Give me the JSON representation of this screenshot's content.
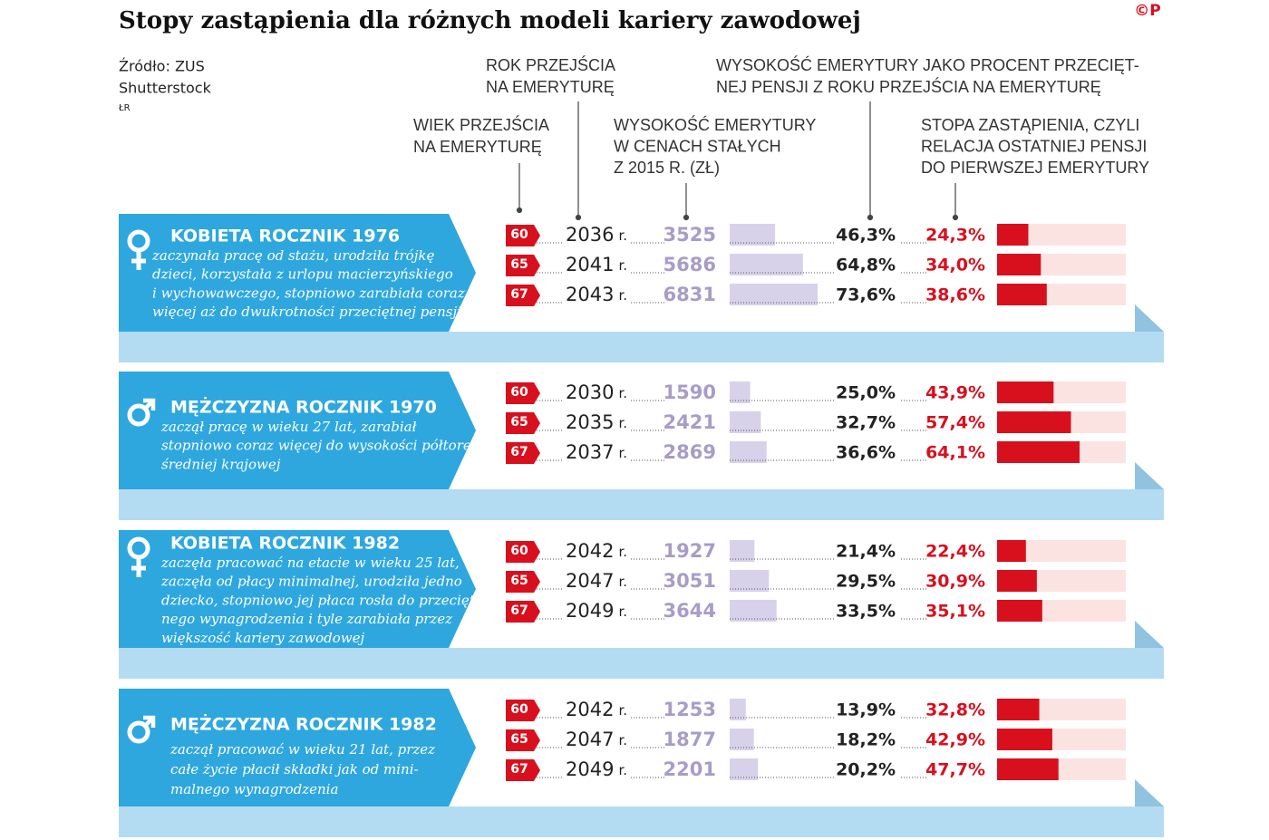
{
  "title": "Stopy zastąpienia dla różnych modeli kariery zawodowej",
  "logo": "©P",
  "source": [
    "Źródło: ZUS",
    "Shutterstock",
    "ŁR"
  ],
  "headers": {
    "year": [
      "ROK PRZEJŚCIA",
      "NA EMERYTURĘ"
    ],
    "pct_avg": [
      "WYSOKOŚĆ EMERYTURY JAKO PROCENT PRZECIĘT-",
      "NEJ PENSJI Z ROKU PRZEJŚCIA NA EMERYTURĘ"
    ],
    "age": [
      "WIEK PRZEJŚCIA",
      "NA EMERYTURĘ"
    ],
    "pension": [
      "WYSOKOŚĆ EMERYTURY",
      "W CENACH STAŁYCH",
      "Z 2015 R. (ZŁ)"
    ],
    "rate": [
      "STOPA ZASTĄPIENIA, CZYLI",
      "RELACJA OSTATNIEJ PENSJI",
      "DO PIERWSZEJ EMERYTURY"
    ]
  },
  "year_suffix": "r.",
  "groups": [
    {
      "title": "KOBIETA ROCZNIK 1976",
      "sex": "female",
      "description": [
        "zaczynała pracę od stażu, urodziła trójkę",
        "dzieci, korzystała z urlopu macierzyńskiego",
        "i wychowawczego, stopniowo zarabiała coraz",
        "więcej aż do dwukrotności przeciętnej pensji"
      ],
      "rows": [
        {
          "age": 60,
          "year": 2036,
          "pension": 3525,
          "pct_avg": 46.3,
          "pct_avg_label": "46,3%",
          "rate": 24.3,
          "rate_label": "24,3%"
        },
        {
          "age": 65,
          "year": 2041,
          "pension": 5686,
          "pct_avg": 64.8,
          "pct_avg_label": "64,8%",
          "rate": 34.0,
          "rate_label": "34,0%"
        },
        {
          "age": 67,
          "year": 2043,
          "pension": 6831,
          "pct_avg": 73.6,
          "pct_avg_label": "73,6%",
          "rate": 38.6,
          "rate_label": "38,6%"
        }
      ]
    },
    {
      "title": "MĘŻCZYZNA ROCZNIK 1970",
      "sex": "male",
      "description": [
        "zaczął pracę w wieku 27 lat, zarabiał",
        "stopniowo coraz więcej do wysokości półtorej",
        "średniej krajowej"
      ],
      "rows": [
        {
          "age": 60,
          "year": 2030,
          "pension": 1590,
          "pct_avg": 25.0,
          "pct_avg_label": "25,0%",
          "rate": 43.9,
          "rate_label": "43,9%"
        },
        {
          "age": 65,
          "year": 2035,
          "pension": 2421,
          "pct_avg": 32.7,
          "pct_avg_label": "32,7%",
          "rate": 57.4,
          "rate_label": "57,4%"
        },
        {
          "age": 67,
          "year": 2037,
          "pension": 2869,
          "pct_avg": 36.6,
          "pct_avg_label": "36,6%",
          "rate": 64.1,
          "rate_label": "64,1%"
        }
      ]
    },
    {
      "title": "KOBIETA ROCZNIK 1982",
      "sex": "female",
      "description": [
        "zaczęła pracować na etacie w wieku 25 lat,",
        "zaczęła od płacy minimalnej, urodziła jedno",
        "dziecko, stopniowo jej płaca rosła do przecięt-",
        "nego wynagrodzenia i tyle zarabiała przez",
        "większość kariery zawodowej"
      ],
      "rows": [
        {
          "age": 60,
          "year": 2042,
          "pension": 1927,
          "pct_avg": 21.4,
          "pct_avg_label": "21,4%",
          "rate": 22.4,
          "rate_label": "22,4%"
        },
        {
          "age": 65,
          "year": 2047,
          "pension": 3051,
          "pct_avg": 29.5,
          "pct_avg_label": "29,5%",
          "rate": 30.9,
          "rate_label": "30,9%"
        },
        {
          "age": 67,
          "year": 2049,
          "pension": 3644,
          "pct_avg": 33.5,
          "pct_avg_label": "33,5%",
          "rate": 35.1,
          "rate_label": "35,1%"
        }
      ]
    },
    {
      "title": "MĘŻCZYZNA ROCZNIK 1982",
      "sex": "male",
      "description": [
        "zaczął pracować w wieku 21 lat, przez",
        "całe życie płacił składki jak od mini-",
        "malnego wynagrodzenia"
      ],
      "rows": [
        {
          "age": 60,
          "year": 2042,
          "pension": 1253,
          "pct_avg": 13.9,
          "pct_avg_label": "13,9%",
          "rate": 32.8,
          "rate_label": "32,8%"
        },
        {
          "age": 65,
          "year": 2047,
          "pension": 1877,
          "pct_avg": 18.2,
          "pct_avg_label": "18,2%",
          "rate": 42.9,
          "rate_label": "42,9%"
        },
        {
          "age": 67,
          "year": 2049,
          "pension": 2201,
          "pct_avg": 20.2,
          "pct_avg_label": "20,2%",
          "rate": 47.7,
          "rate_label": "47,7%"
        }
      ]
    }
  ]
}
